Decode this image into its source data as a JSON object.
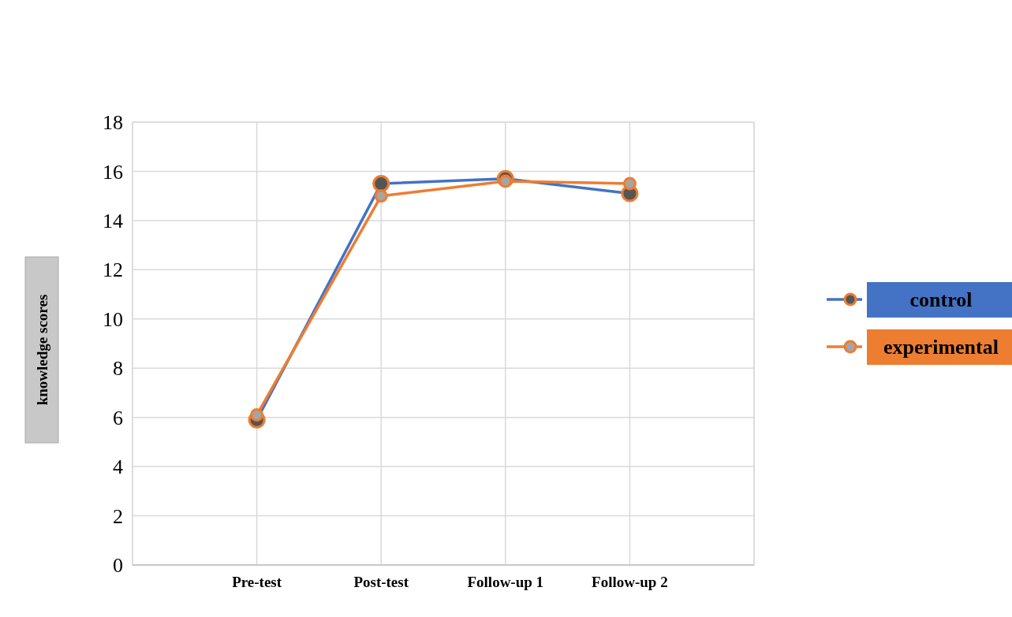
{
  "chart_data": {
    "type": "line",
    "ylabel": "knowledge scores",
    "categories": [
      null,
      "Pre-test",
      "Post-test",
      "Follow-up 1",
      "Follow-up 2",
      null
    ],
    "series": [
      {
        "name": "control",
        "color": "#4472c4",
        "values": [
          null,
          5.9,
          15.5,
          15.7,
          15.1,
          null
        ]
      },
      {
        "name": "experimental",
        "color": "#ed7d31",
        "values": [
          null,
          6.1,
          15.0,
          15.6,
          15.5,
          null
        ]
      }
    ],
    "ylim": [
      0,
      18
    ],
    "yticks": [
      0,
      2,
      4,
      6,
      8,
      10,
      12,
      14,
      16,
      18
    ],
    "grid": true,
    "legend": "right",
    "marker": "circle",
    "line_style": "solid"
  }
}
